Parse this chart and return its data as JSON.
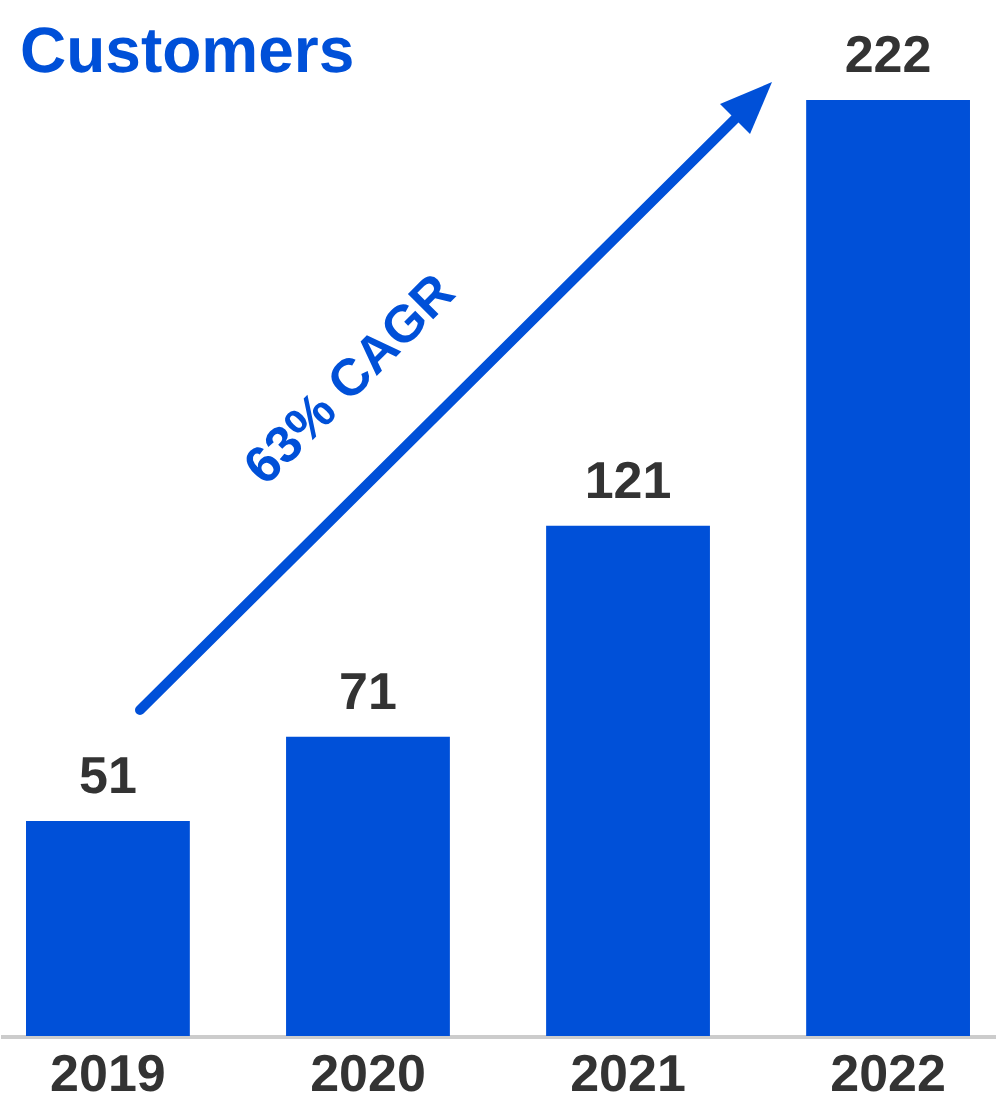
{
  "chart_data": {
    "type": "bar",
    "title": "Customers",
    "categories": [
      "2019",
      "2020",
      "2021",
      "2022"
    ],
    "values": [
      51,
      71,
      121,
      222
    ],
    "color": "#0050d8",
    "data_labels": true,
    "annotations": [
      "63% CAGR"
    ]
  }
}
